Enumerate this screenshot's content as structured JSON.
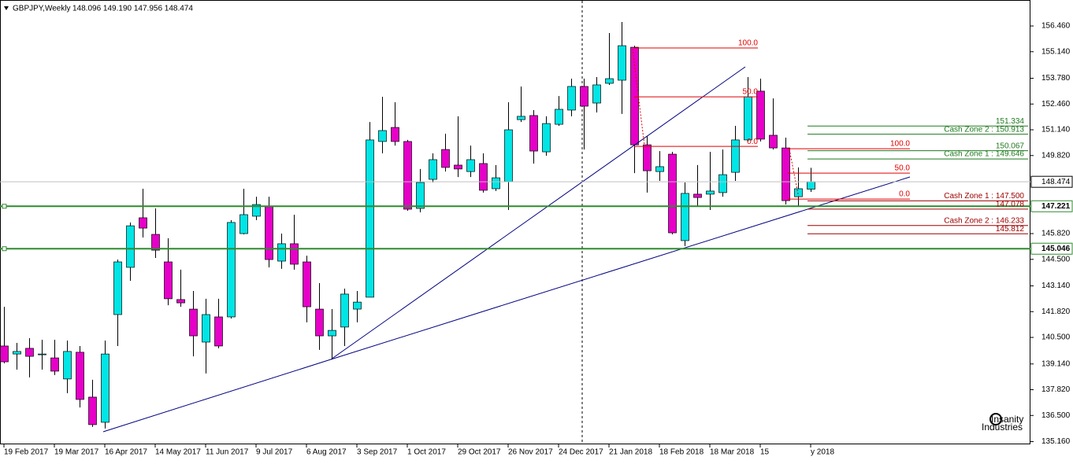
{
  "chart_data": {
    "type": "candlestick",
    "title": "GBPJPY,Weekly",
    "ohlc_text": "148.096 149.190 147.956 148.474",
    "categories": [
      "19 Feb 2017",
      null,
      null,
      null,
      "19 Mar 2017",
      null,
      null,
      null,
      "16 Apr 2017",
      null,
      null,
      null,
      "14 May 2017",
      null,
      null,
      null,
      "11 Jun 2017",
      null,
      null,
      null,
      "9 Jul 2017",
      null,
      null,
      null,
      "6 Aug 2017",
      null,
      null,
      null,
      "3 Sep 2017",
      null,
      null,
      null,
      "1 Oct 2017",
      null,
      null,
      null,
      "29 Oct 2017",
      null,
      null,
      null,
      "26 Nov 2017",
      null,
      null,
      null,
      "24 Dec 2017",
      null,
      null,
      null,
      "21 Jan 2018",
      null,
      null,
      null,
      "18 Feb 2018",
      null,
      null,
      null,
      "18 Mar 2018",
      null,
      null,
      null,
      "15",
      null,
      null,
      null,
      "y 2018"
    ],
    "open": [
      140.06,
      139.65,
      139.94,
      139.61,
      139.45,
      138.37,
      139.74,
      137.44,
      136.15,
      141.67,
      144.09,
      146.63,
      145.78,
      144.37,
      142.44,
      141.95,
      140.26,
      141.55,
      141.55,
      145.82,
      146.71,
      147.23,
      144.41,
      145.3,
      144.37,
      141.95,
      140.58,
      141.03,
      141.95,
      142.56,
      150.54,
      151.26,
      150.54,
      147.11,
      148.6,
      150.13,
      149.33,
      149.0,
      149.41,
      148.12,
      148.48,
      151.66,
      151.87,
      150.01,
      151.42,
      152.15,
      153.36,
      152.51,
      153.52,
      153.68,
      155.37,
      150.37,
      149.0,
      149.89,
      145.46,
      147.84,
      147.84,
      147.92,
      148.96,
      150.62,
      153.12,
      150.86,
      150.21,
      147.71,
      148.096
    ],
    "high": [
      142.07,
      140.22,
      140.46,
      140.38,
      140.38,
      140.34,
      140.06,
      138.33,
      140.34,
      144.49,
      146.39,
      148.12,
      147.11,
      145.58,
      143.97,
      142.88,
      142.48,
      142.48,
      146.51,
      148.12,
      147.71,
      147.71,
      145.82,
      146.79,
      144.69,
      143.28,
      141.95,
      143.0,
      142.88,
      151.54,
      152.83,
      152.55,
      150.62,
      149.13,
      149.93,
      150.94,
      151.83,
      150.33,
      149.93,
      149.33,
      152.55,
      153.36,
      152.15,
      151.83,
      152.87,
      153.76,
      153.76,
      153.84,
      156.1,
      156.66,
      155.45,
      150.82,
      150.05,
      150.01,
      148.44,
      149.33,
      150.01,
      150.13,
      151.34,
      153.84,
      153.76,
      152.75,
      150.74,
      149.21,
      149.19
    ],
    "low": [
      139.17,
      138.85,
      138.45,
      138.85,
      138.57,
      137.64,
      136.91,
      135.91,
      135.83,
      140.06,
      143.4,
      145.62,
      144.57,
      142.15,
      142.07,
      139.53,
      138.65,
      139.94,
      141.47,
      145.78,
      146.51,
      144.09,
      144.01,
      143.97,
      141.27,
      139.86,
      139.37,
      140.06,
      141.27,
      142.56,
      149.93,
      150.33,
      146.99,
      146.91,
      148.44,
      149.0,
      148.72,
      148.72,
      147.92,
      148.0,
      147.03,
      151.54,
      149.41,
      149.81,
      151.34,
      151.83,
      150.13,
      152.03,
      153.44,
      151.95,
      148.92,
      147.92,
      148.52,
      145.78,
      145.18,
      147.23,
      147.03,
      147.71,
      148.52,
      150.54,
      150.54,
      150.13,
      147.31,
      147.23,
      147.956
    ],
    "close": [
      139.25,
      139.78,
      139.53,
      139.65,
      138.77,
      139.78,
      137.32,
      136.03,
      139.65,
      144.37,
      146.22,
      146.1,
      144.97,
      142.48,
      142.27,
      140.58,
      141.67,
      140.06,
      146.39,
      146.79,
      147.31,
      144.49,
      145.3,
      144.25,
      142.07,
      140.58,
      140.86,
      142.72,
      142.31,
      150.62,
      151.1,
      150.54,
      147.07,
      148.44,
      149.61,
      149.21,
      149.13,
      149.61,
      148.04,
      148.68,
      151.14,
      151.83,
      150.05,
      151.46,
      152.19,
      153.36,
      152.35,
      153.44,
      153.76,
      155.45,
      150.37,
      149.04,
      149.25,
      145.86,
      147.88,
      147.67,
      148.0,
      148.84,
      150.62,
      152.83,
      150.66,
      150.21,
      147.51,
      148.12,
      148.474
    ],
    "up_color": "#00e5e5",
    "down_color": "#e600c8",
    "ylim": [
      157.67,
      135.02
    ],
    "yticks": [
      {
        "value": 156.46,
        "label": "156.460"
      },
      {
        "value": 155.14,
        "label": "155.140"
      },
      {
        "value": 153.78,
        "label": "153.780"
      },
      {
        "value": 152.46,
        "label": "152.460"
      },
      {
        "value": 151.14,
        "label": "151.140"
      },
      {
        "value": 149.82,
        "label": "149.820"
      },
      {
        "value": 145.82,
        "label": "145.820"
      },
      {
        "value": 144.5,
        "label": "144.500"
      },
      {
        "value": 143.14,
        "label": "143.140"
      },
      {
        "value": 141.82,
        "label": "141.820"
      },
      {
        "value": 140.5,
        "label": "140.500"
      },
      {
        "value": 139.14,
        "label": "139.140"
      },
      {
        "value": 137.82,
        "label": "137.820"
      },
      {
        "value": 136.5,
        "label": "136.500"
      },
      {
        "value": 135.16,
        "label": "135.160"
      }
    ],
    "hlines": [
      {
        "value": 148.474,
        "color": "#c0c0c0"
      },
      {
        "value": 147.221,
        "color": "#2e8b2e"
      },
      {
        "value": 145.046,
        "color": "#2e8b2e"
      }
    ],
    "fibs": [
      {
        "color": "#e00000",
        "levels": [
          {
            "value": 155.33,
            "label": "100.0"
          },
          {
            "value": 152.83,
            "label": "50.0"
          },
          {
            "value": 150.29,
            "label": "0.0"
          }
        ]
      },
      {
        "color": "#e00000",
        "levels": [
          {
            "value": 150.17,
            "label": "100.0"
          },
          {
            "value": 148.92,
            "label": "50.0"
          },
          {
            "value": 147.59,
            "label": "0.0"
          }
        ]
      }
    ],
    "zones": [
      {
        "value": 151.334,
        "color": "#1f7a1f"
      },
      {
        "value": 150.913,
        "label": "Cash Zone 2 : 150.913",
        "color": "#1f7a1f"
      },
      {
        "value": 150.067,
        "color": "#1f7a1f"
      },
      {
        "value": 149.646,
        "label": "Cash Zone 1 : 149.646",
        "color": "#1f7a1f"
      },
      {
        "value": 147.5,
        "label": "Cash Zone 1 : 147.500",
        "color": "#a00000"
      },
      {
        "value": 147.078,
        "color": "#a00000"
      },
      {
        "value": 146.233,
        "label": "Cash Zone 2 : 146.233",
        "color": "#a00000"
      },
      {
        "value": 145.812,
        "color": "#a00000"
      }
    ],
    "logo": [
      "Insanity",
      "Industries"
    ]
  }
}
